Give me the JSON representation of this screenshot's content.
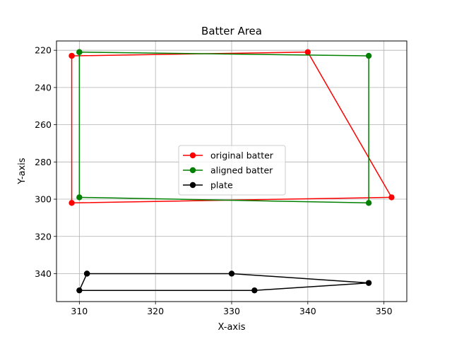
{
  "chart_data": {
    "type": "line",
    "title": "Batter Area",
    "xlabel": "X-axis",
    "ylabel": "Y-axis",
    "xlim": [
      307,
      353
    ],
    "ylim": [
      355,
      215
    ],
    "y_inverted": true,
    "grid": true,
    "legend_position": "center",
    "x_ticks": [
      310,
      320,
      330,
      340,
      350
    ],
    "y_ticks": [
      220,
      240,
      260,
      280,
      300,
      320,
      340
    ],
    "series": [
      {
        "name": "original batter",
        "color": "#ff0000",
        "points": [
          [
            309,
            223
          ],
          [
            340,
            221
          ],
          [
            351,
            299
          ],
          [
            309,
            302
          ],
          [
            309,
            223
          ]
        ]
      },
      {
        "name": "aligned batter",
        "color": "#008000",
        "points": [
          [
            310,
            221
          ],
          [
            348,
            223
          ],
          [
            348,
            302
          ],
          [
            310,
            299
          ],
          [
            310,
            221
          ]
        ]
      },
      {
        "name": "plate",
        "color": "#000000",
        "points": [
          [
            311,
            340
          ],
          [
            330,
            340
          ],
          [
            348,
            345
          ],
          [
            333,
            349
          ],
          [
            310,
            349
          ],
          [
            311,
            340
          ]
        ]
      }
    ]
  }
}
